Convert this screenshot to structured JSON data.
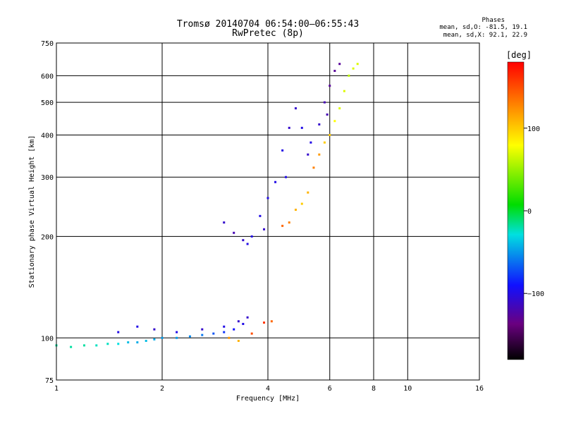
{
  "header": {
    "title_line1": "Tromsø 20140704 06:54:00–06:55:43",
    "title_line2": "RwPretec (8p)"
  },
  "phases_box": {
    "title": "Phases",
    "o_line": "mean, sd,O: -81.5, 19.1",
    "x_line": "mean, sd,X:  92.1, 22.9"
  },
  "colorbar": {
    "label": "[deg]",
    "ticks": [
      {
        "value": 100,
        "label": "100"
      },
      {
        "value": 0,
        "label": "0"
      },
      {
        "value": -100,
        "label": "−100"
      }
    ],
    "range": [
      -180,
      180
    ]
  },
  "chart_data": {
    "type": "scatter",
    "title": "Tromsø 20140704 06:54:00–06:55:43",
    "subtitle": "RwPretec (8p)",
    "xlabel": "Frequency [MHz]",
    "ylabel": "Stationary phase Virtual Height [km]",
    "xscale": "log2",
    "yscale": "log",
    "xlim": [
      1,
      16
    ],
    "ylim": [
      75,
      750
    ],
    "grid": true,
    "color_scale": "phase in degrees (rainbow, -180 to 180)",
    "x_ticks": [
      {
        "value": 1,
        "label": "1"
      },
      {
        "value": 2,
        "label": "2"
      },
      {
        "value": 4,
        "label": "4"
      },
      {
        "value": 6,
        "label": "6"
      },
      {
        "value": 8,
        "label": "8"
      },
      {
        "value": 10,
        "label": "10"
      },
      {
        "value": 16,
        "label": "16"
      }
    ],
    "y_ticks": [
      {
        "value": 75,
        "label": "75"
      },
      {
        "value": 100,
        "label": "100"
      },
      {
        "value": 200,
        "label": "200"
      },
      {
        "value": 300,
        "label": "300"
      },
      {
        "value": 400,
        "label": "400"
      },
      {
        "value": 500,
        "label": "500"
      },
      {
        "value": 600,
        "label": "600"
      },
      {
        "value": 750,
        "label": "750"
      }
    ],
    "series": [
      {
        "name": "O",
        "points": [
          [
            1.0,
            95,
            -20
          ],
          [
            1.1,
            94,
            -20
          ],
          [
            1.2,
            95,
            -20
          ],
          [
            1.3,
            95,
            -25
          ],
          [
            1.4,
            96,
            -25
          ],
          [
            1.5,
            96,
            -30
          ],
          [
            1.6,
            97,
            -40
          ],
          [
            1.7,
            97,
            -45
          ],
          [
            1.8,
            98,
            -40
          ],
          [
            1.9,
            99,
            -45
          ],
          [
            2.0,
            100,
            -50
          ],
          [
            2.2,
            100,
            -50
          ],
          [
            2.4,
            101,
            -55
          ],
          [
            2.6,
            102,
            -60
          ],
          [
            2.8,
            103,
            -70
          ],
          [
            3.0,
            104,
            -80
          ],
          [
            3.2,
            106,
            -90
          ],
          [
            3.4,
            110,
            -100
          ],
          [
            3.5,
            115,
            -110
          ],
          [
            1.5,
            104,
            -100
          ],
          [
            1.7,
            108,
            -100
          ],
          [
            1.9,
            106,
            -110
          ],
          [
            2.2,
            104,
            -100
          ],
          [
            2.6,
            106,
            -110
          ],
          [
            3.0,
            108,
            -100
          ],
          [
            3.3,
            112,
            -110
          ],
          [
            3.4,
            195,
            -110
          ],
          [
            3.6,
            200,
            -100
          ],
          [
            3.8,
            230,
            -100
          ],
          [
            4.0,
            260,
            -100
          ],
          [
            4.2,
            290,
            -100
          ],
          [
            4.4,
            360,
            -100
          ],
          [
            4.6,
            420,
            -110
          ],
          [
            4.8,
            480,
            -110
          ],
          [
            5.0,
            420,
            -100
          ],
          [
            5.3,
            380,
            -100
          ],
          [
            5.6,
            430,
            -110
          ],
          [
            5.8,
            500,
            -120
          ],
          [
            6.0,
            560,
            -130
          ],
          [
            6.2,
            620,
            -130
          ],
          [
            6.4,
            650,
            -130
          ],
          [
            3.0,
            220,
            -110
          ],
          [
            3.2,
            205,
            -120
          ],
          [
            3.5,
            190,
            -100
          ],
          [
            3.9,
            210,
            -110
          ],
          [
            4.5,
            300,
            -100
          ],
          [
            5.2,
            350,
            -110
          ],
          [
            5.9,
            460,
            -120
          ]
        ]
      },
      {
        "name": "X",
        "points": [
          [
            3.1,
            100,
            120
          ],
          [
            3.3,
            98,
            110
          ],
          [
            3.6,
            103,
            150
          ],
          [
            3.9,
            111,
            160
          ],
          [
            4.1,
            112,
            140
          ],
          [
            4.4,
            215,
            140
          ],
          [
            4.6,
            220,
            130
          ],
          [
            4.8,
            240,
            110
          ],
          [
            5.0,
            250,
            100
          ],
          [
            5.2,
            270,
            110
          ],
          [
            5.4,
            320,
            130
          ],
          [
            5.6,
            350,
            120
          ],
          [
            5.8,
            380,
            100
          ],
          [
            6.0,
            400,
            100
          ],
          [
            6.2,
            440,
            80
          ],
          [
            6.4,
            480,
            70
          ],
          [
            6.6,
            540,
            70
          ],
          [
            6.8,
            600,
            60
          ],
          [
            7.0,
            630,
            70
          ],
          [
            7.2,
            650,
            70
          ]
        ]
      }
    ]
  }
}
